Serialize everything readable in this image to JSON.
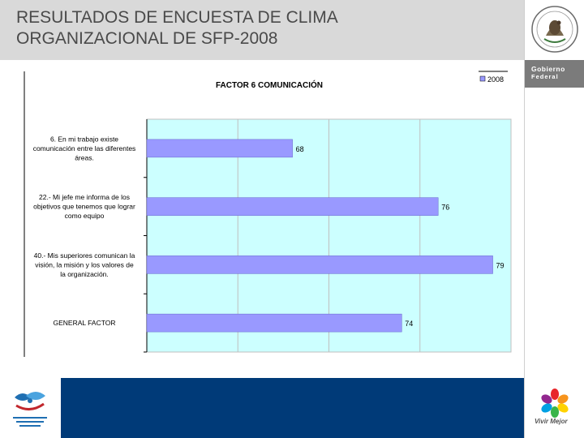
{
  "slide": {
    "title_line1": "RESULTADOS DE ENCUESTA DE CLIMA",
    "title_line2": "ORGANIZACIONAL DE SFP-2008"
  },
  "branding": {
    "gov_line1": "Gobierno",
    "gov_line2": "Federal",
    "vivir": "Vivir Mejor"
  },
  "colors": {
    "bar": "#9999ff",
    "plot_bg": "#ccffff",
    "footer": "#003a78",
    "header": "#d9d9d9"
  },
  "chart_data": {
    "type": "bar",
    "orientation": "horizontal",
    "title": "FACTOR 6 COMUNICACIÓN",
    "categories": [
      [
        "6.  En mi trabajo existe",
        "comunicación entre las diferentes",
        "áreas."
      ],
      [
        "22.-  Mi jefe me informa de los",
        "objetivos que tenemos que lograr",
        "como equipo"
      ],
      [
        "40.-  Mis superiores comunican la",
        "visión, la misión y los valores de",
        "la organización."
      ],
      [
        "GENERAL FACTOR"
      ]
    ],
    "series": [
      {
        "name": "2008",
        "values": [
          68,
          76,
          79,
          74
        ]
      }
    ],
    "xlim": [
      60,
      80
    ],
    "grid": true,
    "legend": "top-right"
  }
}
